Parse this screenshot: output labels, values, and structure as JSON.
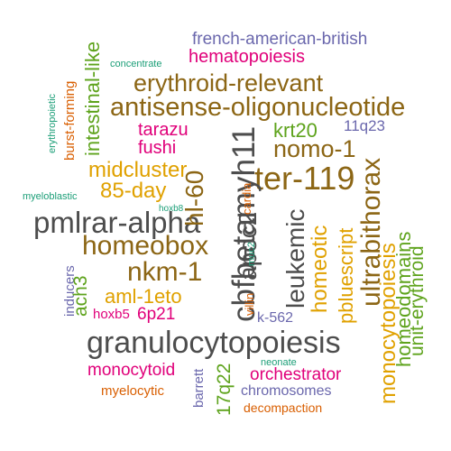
{
  "words": [
    "french-american-british",
    "hematopoiesis",
    "concentrate",
    "erythroid-relevant",
    "antisense-oligonucleotide",
    "intestinal-like",
    "erythropoietic",
    "burst-forming",
    "11q23",
    "tarazu",
    "krt20",
    "fushi",
    "cbfbetamyh11",
    "hl-60",
    "nomo-1",
    "midcluster",
    "ter-119",
    "85-day",
    "cardia",
    "myeloblastic",
    "hoxb8",
    "ultrabithorax",
    "pmlrar-alpha",
    "apoc2",
    "leukemic",
    "homeotic",
    "homeobox",
    "pbluescript",
    "monocytopoiesis",
    "homeodomains",
    "unit-erythroid",
    "nkm-1",
    "inducers",
    "ach3",
    "aml-1eto",
    "muc2",
    "villin",
    "hoxb5",
    "6p21",
    "k-562",
    "granulocytopoiesis",
    "neonate",
    "monocytoid",
    "orchestrator",
    "barrett",
    "17q22",
    "chromosomes",
    "myelocytic",
    "decompaction"
  ]
}
